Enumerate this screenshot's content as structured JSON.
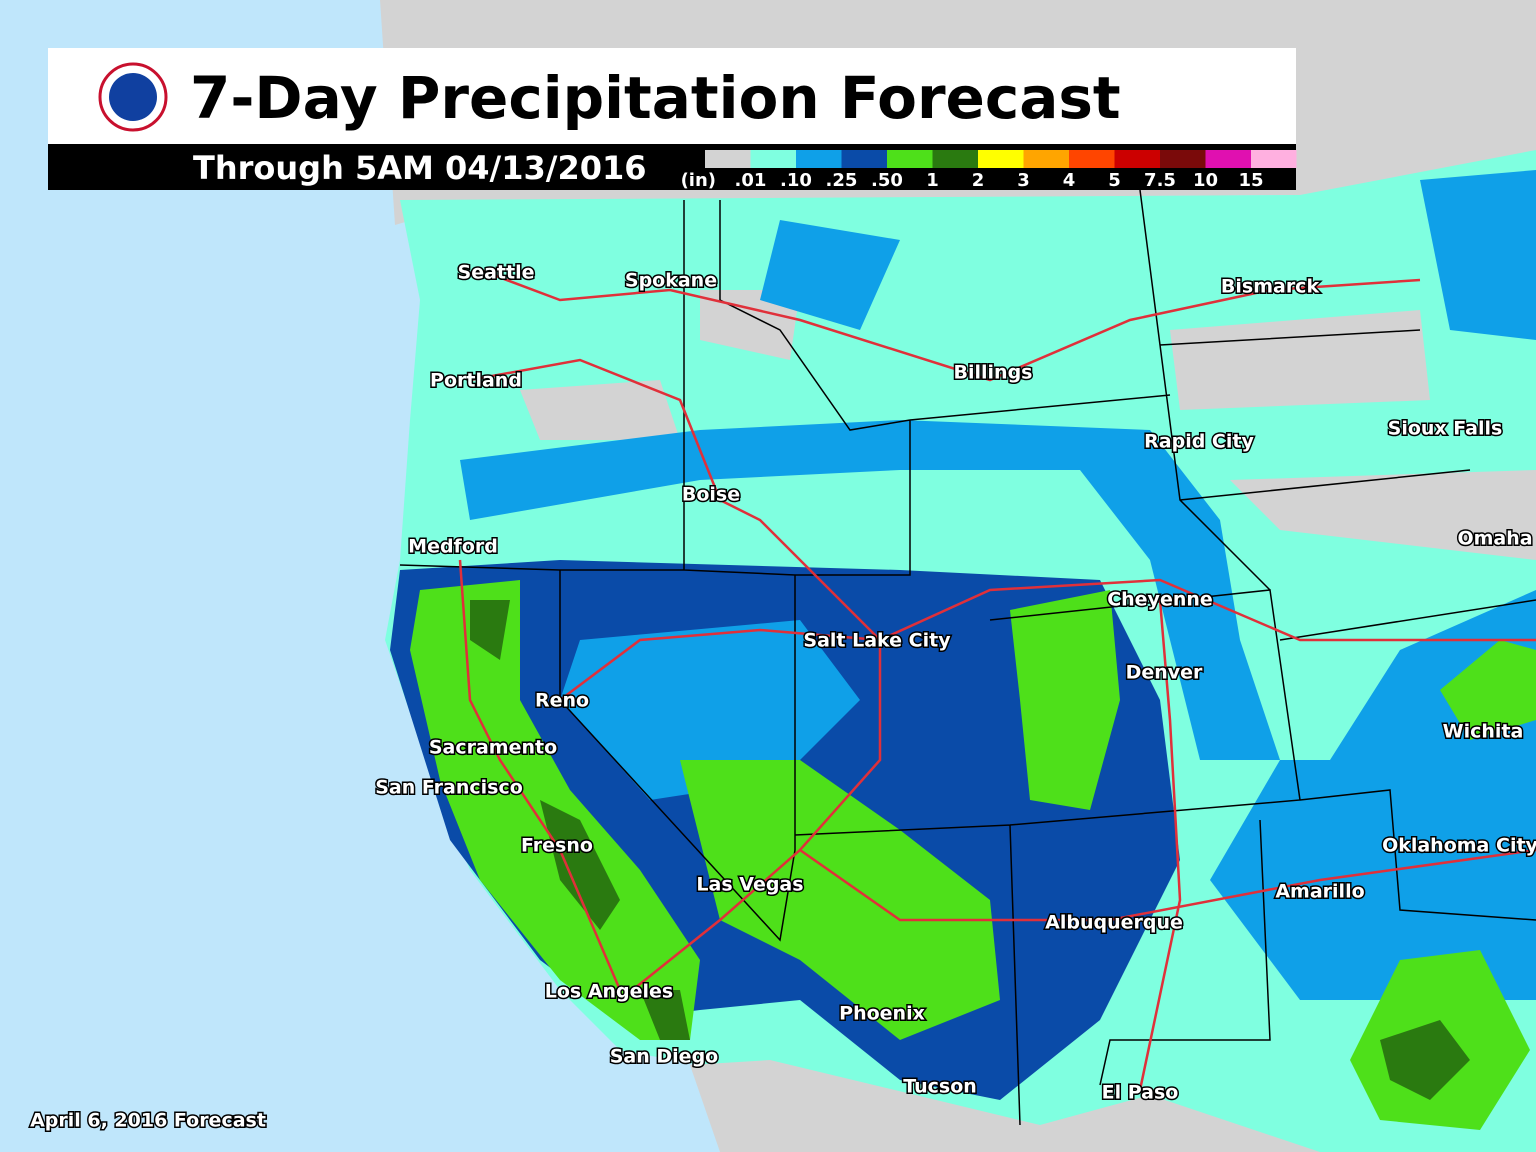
{
  "header": {
    "title": "7-Day Precipitation Forecast",
    "subtitle": "Through 5AM 04/13/2016"
  },
  "legend": {
    "unit": "(in)",
    "labels": [
      ".01",
      ".10",
      ".25",
      ".50",
      "1",
      "2",
      "3",
      "4",
      "5",
      "7.5",
      "10",
      "15"
    ],
    "colors": [
      "#d3d3d3",
      "#7fffe0",
      "#0fa0e8",
      "#0a4ba8",
      "#4ee01a",
      "#2a7a10",
      "#ffff00",
      "#ffa500",
      "#ff4500",
      "#cc0000",
      "#7a0a0a",
      "#e010b0",
      "#ffb0e0"
    ]
  },
  "cities": [
    "Seattle",
    "Spokane",
    "Portland",
    "Billings",
    "Bismarck",
    "Rapid City",
    "Sioux Falls",
    "Boise",
    "Medford",
    "Omaha",
    "Cheyenne",
    "Salt Lake City",
    "Denver",
    "Reno",
    "Wichita",
    "Sacramento",
    "San Francisco",
    "Fresno",
    "Oklahoma City",
    "Las Vegas",
    "Amarillo",
    "Albuquerque",
    "Los Angeles",
    "Phoenix",
    "San Diego",
    "Tucson",
    "El Paso"
  ],
  "footer": "April 6, 2016 Forecast"
}
